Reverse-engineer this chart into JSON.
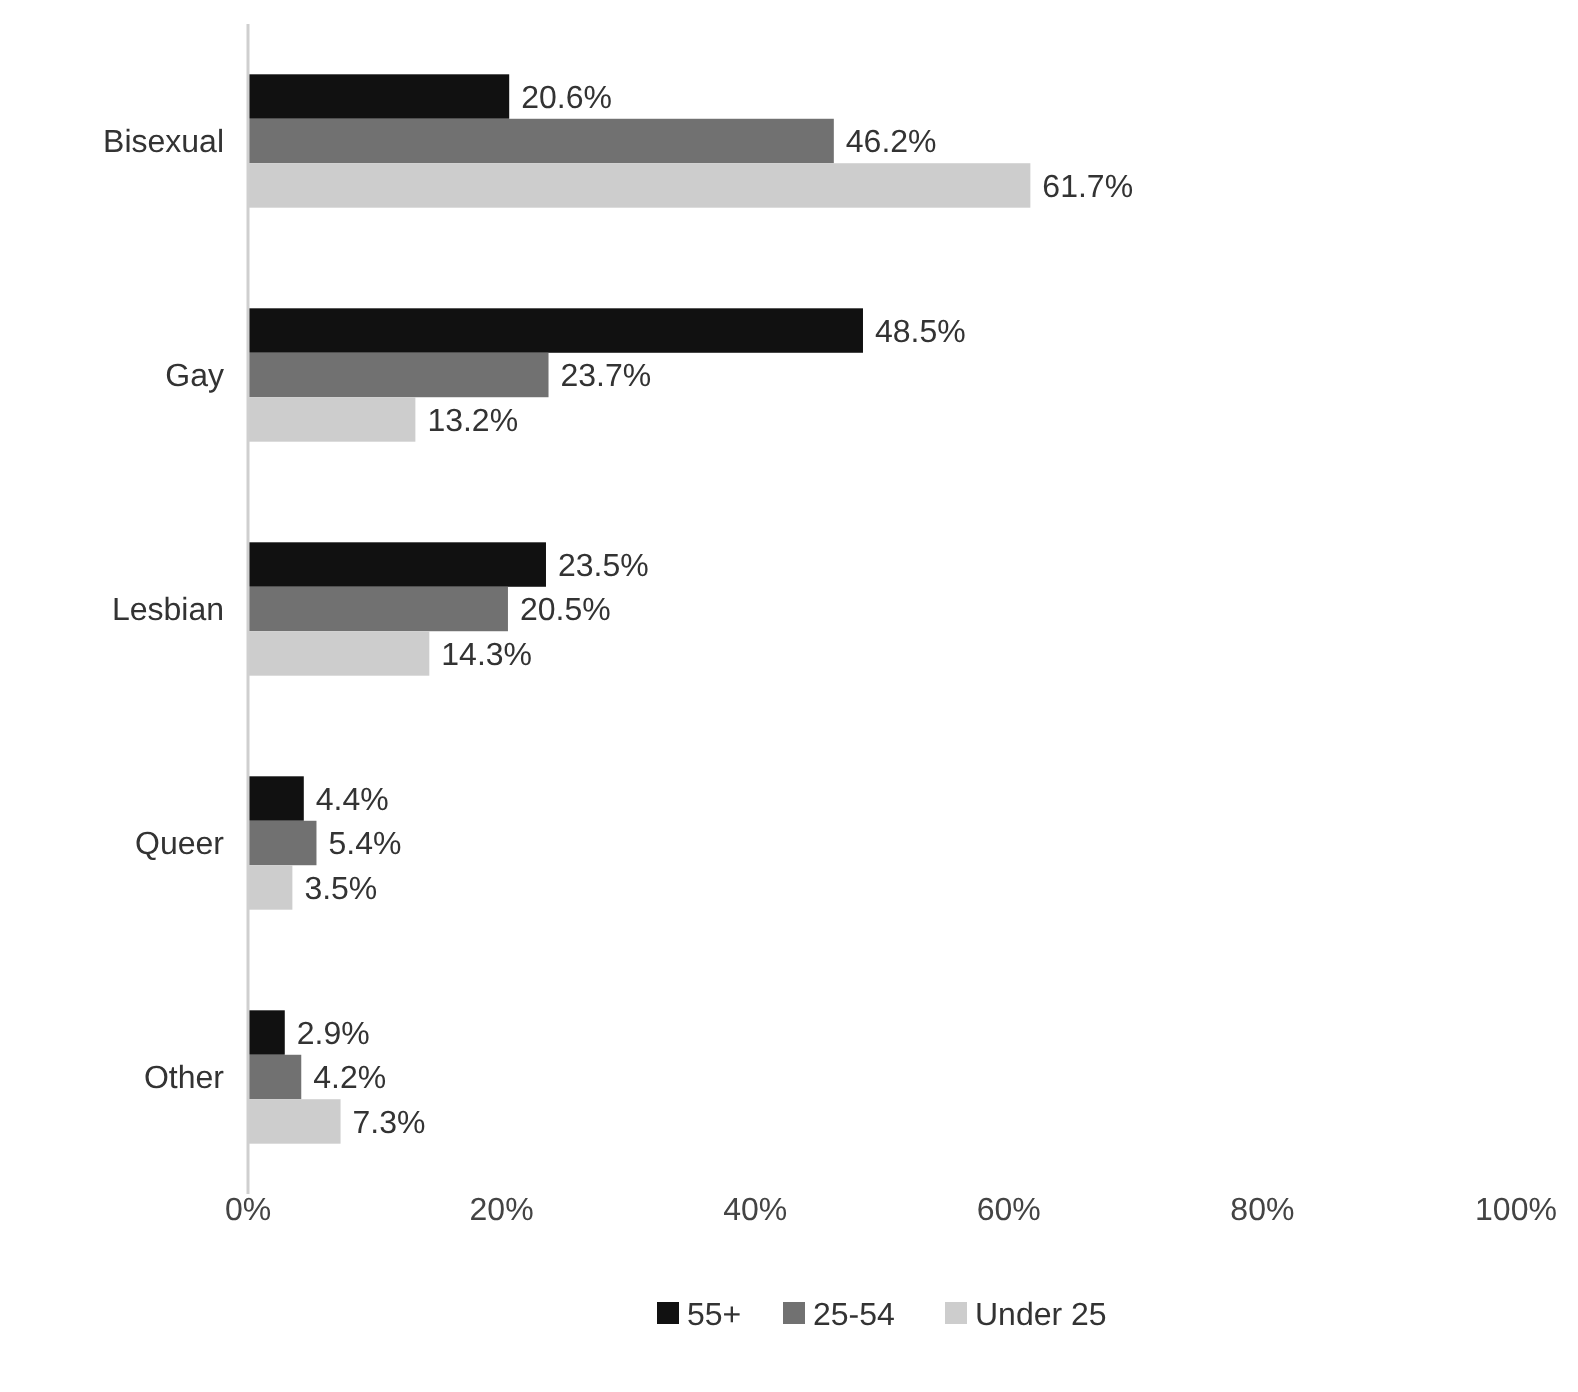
{
  "chart_data": {
    "type": "bar",
    "orientation": "horizontal",
    "categories": [
      "Bisexual",
      "Gay",
      "Lesbian",
      "Queer",
      "Other"
    ],
    "series": [
      {
        "name": "55+",
        "color": "#111111",
        "values": [
          20.6,
          48.5,
          23.5,
          4.4,
          2.9
        ],
        "value_labels": [
          "20.6%",
          "48.5%",
          "23.5%",
          "4.4%",
          "2.9%"
        ]
      },
      {
        "name": "25-54",
        "color": "#717171",
        "values": [
          46.2,
          23.7,
          20.5,
          5.4,
          4.2
        ],
        "value_labels": [
          "46.2%",
          "23.7%",
          "20.5%",
          "5.4%",
          "4.2%"
        ]
      },
      {
        "name": "Under 25",
        "color": "#cdcdcd",
        "values": [
          61.7,
          13.2,
          14.3,
          3.5,
          7.3
        ],
        "value_labels": [
          "61.7%",
          "13.2%",
          "14.3%",
          "3.5%",
          "7.3%"
        ]
      }
    ],
    "xlim": [
      0,
      100
    ],
    "xticks": [
      {
        "value": 0,
        "label": "0%"
      },
      {
        "value": 20,
        "label": "20%"
      },
      {
        "value": 40,
        "label": "40%"
      },
      {
        "value": 60,
        "label": "60%"
      },
      {
        "value": 80,
        "label": "80%"
      },
      {
        "value": 100,
        "label": "100%"
      }
    ],
    "grid": false,
    "legend": "bottom"
  }
}
